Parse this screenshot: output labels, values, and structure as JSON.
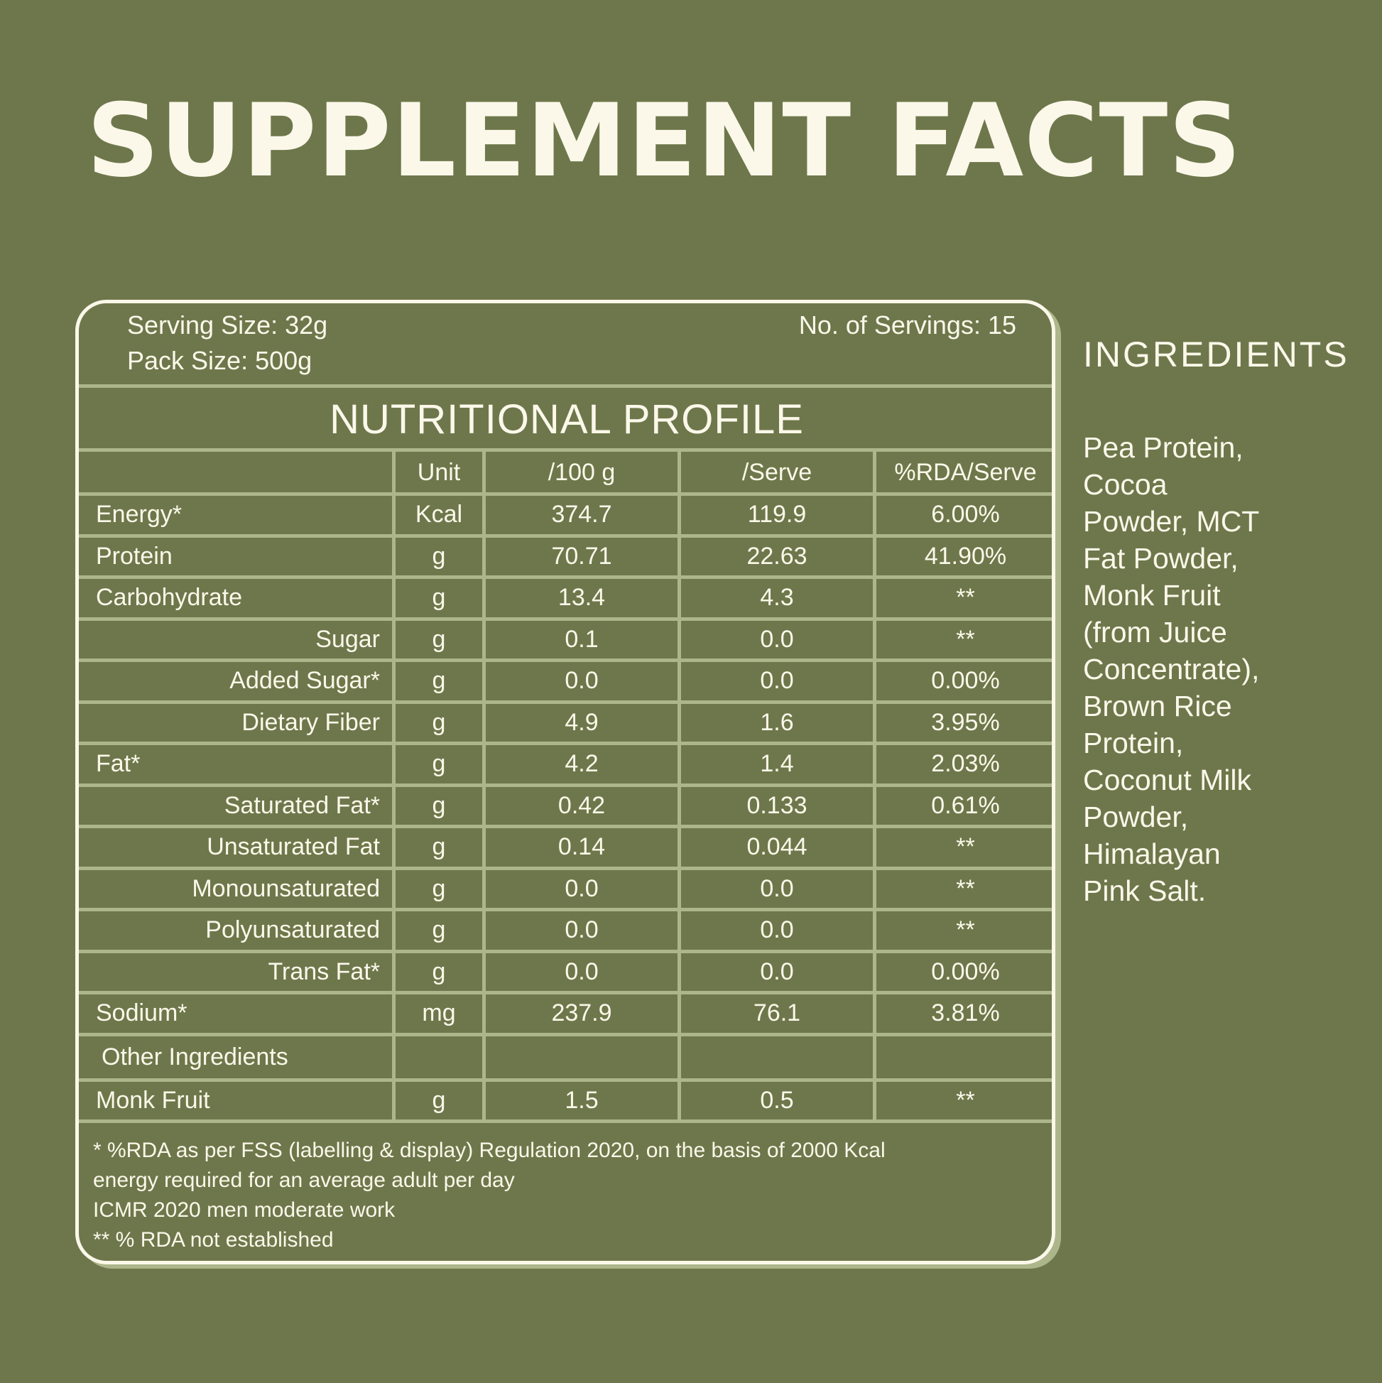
{
  "title": "SUPPLEMENT FACTS",
  "serving_size": "Serving Size:  32g",
  "pack_size": "Pack Size:  500g",
  "servings": "No. of Servings:  15",
  "profile_title": "NUTRITIONAL PROFILE",
  "headers": {
    "unit": "Unit",
    "per100": "/100 g",
    "serve": "/Serve",
    "rda": "%RDA/Serve"
  },
  "rows": [
    {
      "name": "Energy*",
      "unit": "Kcal",
      "per100": "374.7",
      "serve": "119.9",
      "rda": "6.00%"
    },
    {
      "name": "Protein",
      "unit": "g",
      "per100": "70.71",
      "serve": "22.63",
      "rda": "41.90%"
    },
    {
      "name": "Carbohydrate",
      "unit": "g",
      "per100": "13.4",
      "serve": "4.3",
      "rda": "**"
    },
    {
      "name": "Sugar",
      "unit": "g",
      "per100": "0.1",
      "serve": "0.0",
      "rda": "**"
    },
    {
      "name": "Added Sugar*",
      "unit": "g",
      "per100": "0.0",
      "serve": "0.0",
      "rda": "0.00%"
    },
    {
      "name": "Dietary Fiber",
      "unit": "g",
      "per100": "4.9",
      "serve": "1.6",
      "rda": "3.95%"
    },
    {
      "name": "Fat*",
      "unit": "g",
      "per100": "4.2",
      "serve": "1.4",
      "rda": "2.03%"
    },
    {
      "name": "Saturated Fat*",
      "unit": "g",
      "per100": "0.42",
      "serve": "0.133",
      "rda": "0.61%"
    },
    {
      "name": "Unsaturated Fat",
      "unit": "g",
      "per100": "0.14",
      "serve": "0.044",
      "rda": "**"
    },
    {
      "name": "Monounsaturated",
      "unit": "g",
      "per100": "0.0",
      "serve": "0.0",
      "rda": "**"
    },
    {
      "name": "Polyunsaturated",
      "unit": "g",
      "per100": "0.0",
      "serve": "0.0",
      "rda": "**"
    },
    {
      "name": "Trans Fat*",
      "unit": "g",
      "per100": "0.0",
      "serve": "0.0",
      "rda": "0.00%"
    },
    {
      "name": "Sodium*",
      "unit": "mg",
      "per100": "237.9",
      "serve": "76.1",
      "rda": "3.81%"
    }
  ],
  "other_ingredients_label": "Other Ingredients",
  "monk_fruit": {
    "name": "Monk Fruit",
    "unit": "g",
    "per100": "1.5",
    "serve": "0.5",
    "rda": "**"
  },
  "footnotes": [
    "* %RDA as per FSS (labelling & display) Regulation 2020, on the basis of 2000 Kcal",
    "energy required for an average adult per day",
    "ICMR 2020 men moderate work",
    "** % RDA not established"
  ],
  "ingredients_title": "INGREDIENTS",
  "ingredients_lines": [
    "Pea Protein,",
    "Cocoa",
    "Powder, MCT",
    "Fat Powder,",
    "Monk Fruit",
    "(from Juice",
    "Concentrate),",
    "Brown Rice",
    "Protein,",
    "Coconut Milk",
    "Powder,",
    "Himalayan",
    "Pink Salt."
  ]
}
